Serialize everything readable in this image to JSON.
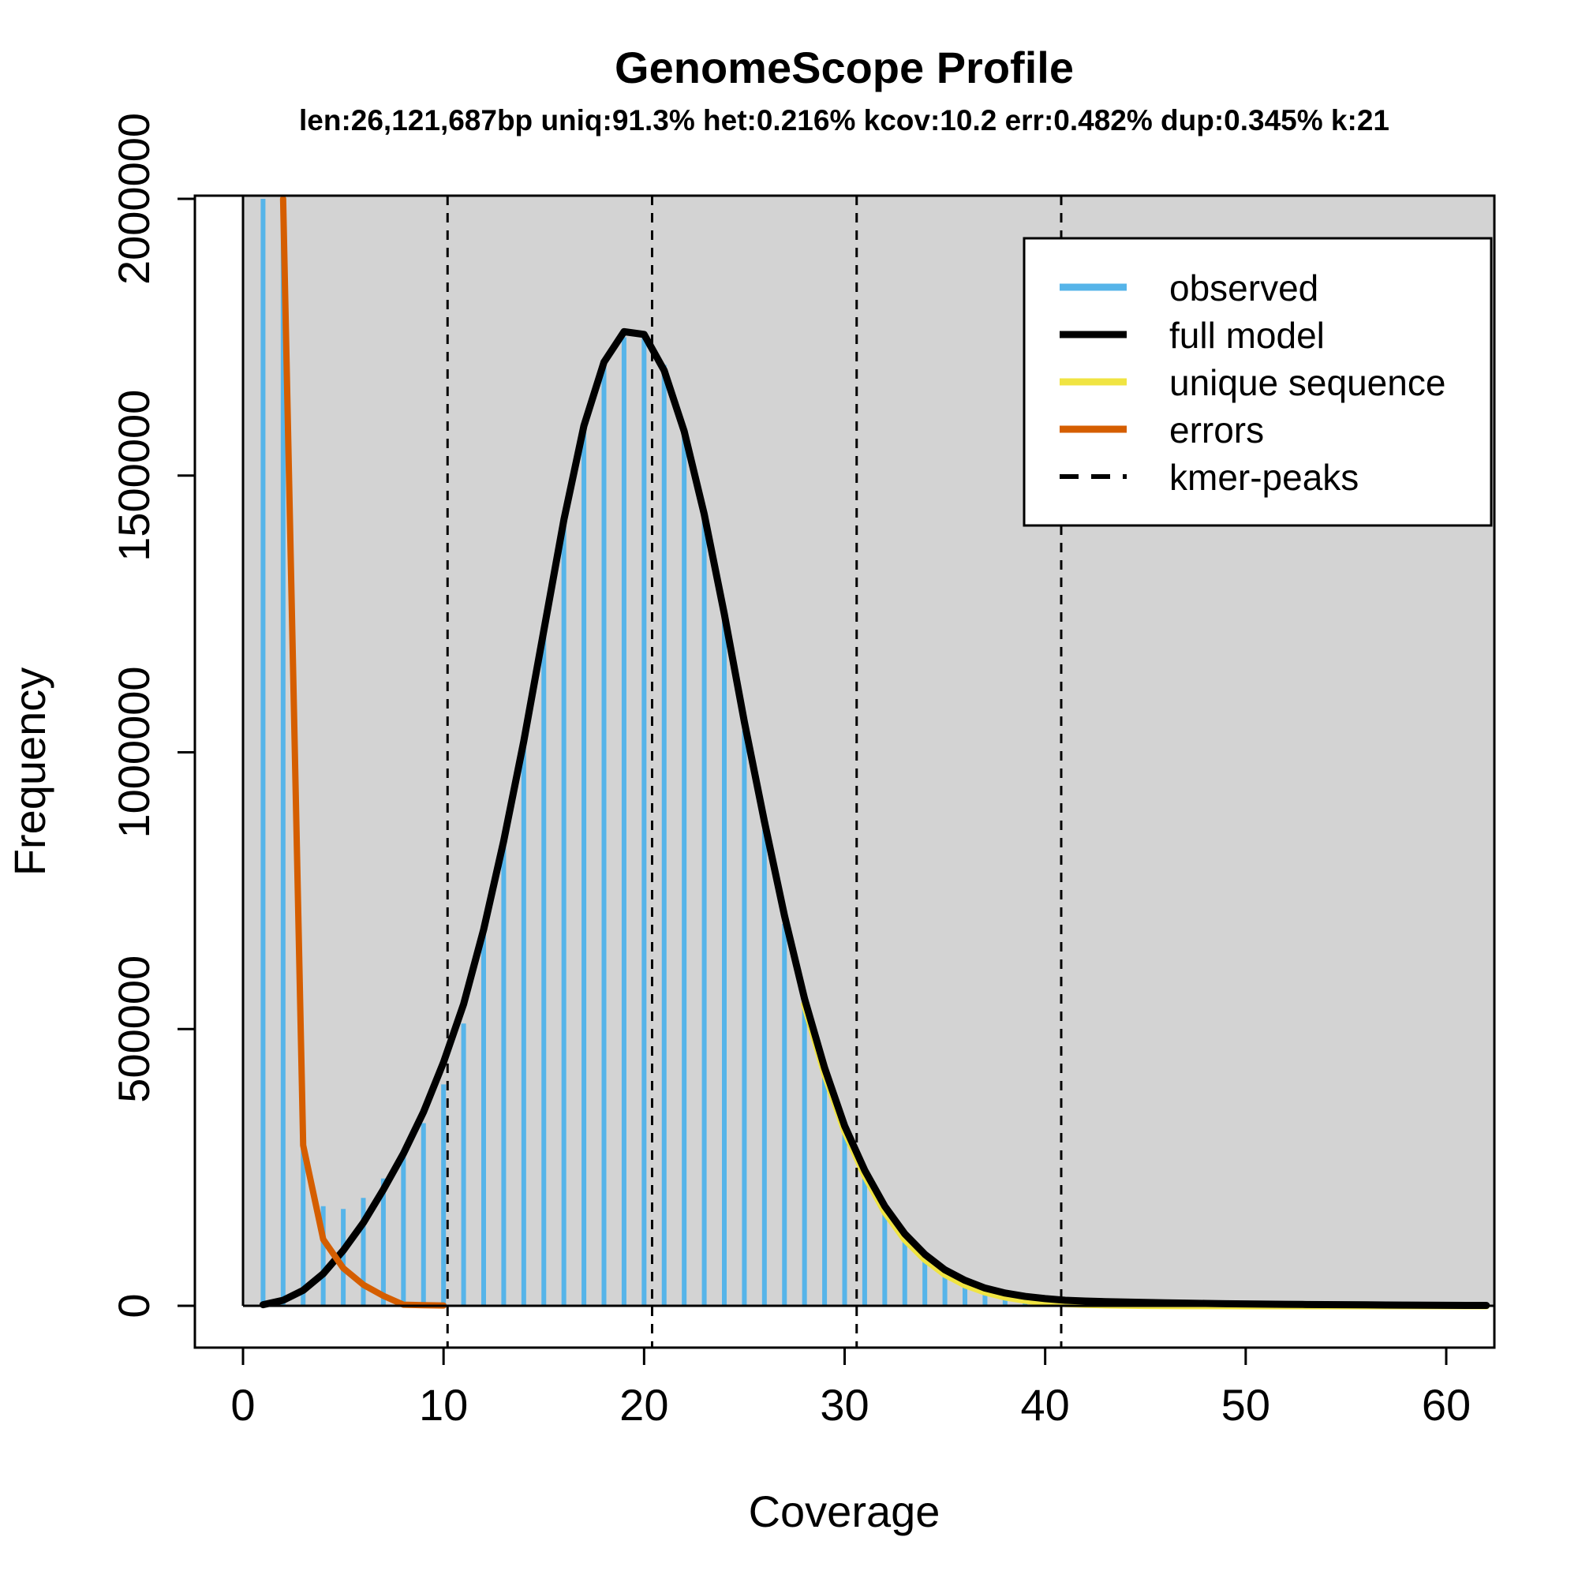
{
  "chart_data": {
    "type": "bar",
    "title": "GenomeScope Profile",
    "subtitle": "len:26,121,687bp uniq:91.3%  het:0.216% kcov:10.2 err:0.482%  dup:0.345%  k:21",
    "xlabel": "Coverage",
    "ylabel": "Frequency",
    "xlim": [
      -2.4,
      62.4
    ],
    "ylim": [
      -80000,
      2000000
    ],
    "x_ticks": [
      0,
      10,
      20,
      30,
      40,
      50,
      60
    ],
    "y_ticks": [
      0,
      500000,
      1000000,
      1500000,
      2000000
    ],
    "x_tick_labels": [
      "0",
      "10",
      "20",
      "30",
      "40",
      "50",
      "60"
    ],
    "y_tick_labels": [
      "0",
      "500000",
      "1000000",
      "1500000",
      "2000000"
    ],
    "background_x_start": 0,
    "kmer_peaks": [
      10.2,
      20.4,
      30.6,
      40.8
    ],
    "legend_position": "top-right",
    "legend": [
      {
        "label": "observed",
        "color": "#56b4e9",
        "style": "solid"
      },
      {
        "label": "full model",
        "color": "#000000",
        "style": "solid"
      },
      {
        "label": "unique sequence",
        "color": "#f0e442",
        "style": "solid"
      },
      {
        "label": "errors",
        "color": "#d55e00",
        "style": "solid"
      },
      {
        "label": "kmer-peaks",
        "color": "#000000",
        "style": "dashed"
      }
    ],
    "observed": {
      "name": "observed",
      "color": "#56b4e9",
      "x": [
        1,
        2,
        3,
        4,
        5,
        6,
        7,
        8,
        9,
        10,
        11,
        12,
        13,
        14,
        15,
        16,
        17,
        18,
        19,
        20,
        21,
        22,
        23,
        24,
        25,
        26,
        27,
        28,
        29,
        30,
        31,
        32,
        33,
        34,
        35,
        36,
        37,
        38,
        39,
        40,
        41,
        42,
        43,
        44,
        45,
        46,
        47,
        48,
        49,
        50,
        51,
        52,
        53,
        54,
        55,
        56,
        57,
        58,
        59,
        60,
        61,
        62
      ],
      "y": [
        2000000,
        2000000,
        300000,
        180000,
        175000,
        195000,
        230000,
        275000,
        330000,
        400000,
        510000,
        680000,
        840000,
        1020000,
        1220000,
        1420000,
        1590000,
        1700000,
        1750000,
        1760000,
        1700000,
        1580000,
        1430000,
        1240000,
        1040000,
        860000,
        690000,
        540000,
        420000,
        310000,
        230000,
        170000,
        125000,
        90000,
        65000,
        45000,
        32000,
        22000,
        16000,
        12000,
        9000,
        7000,
        6000,
        5000,
        4500,
        4000,
        3500,
        3000,
        2800,
        2500,
        2300,
        2100,
        1900,
        1800,
        1700,
        1600,
        1500,
        1400,
        1300,
        1200,
        1100,
        1000
      ]
    },
    "full_model": {
      "name": "full model",
      "color": "#000000",
      "x": [
        1,
        2,
        3,
        4,
        5,
        6,
        7,
        8,
        9,
        10,
        11,
        12,
        13,
        14,
        15,
        16,
        17,
        18,
        19,
        20,
        21,
        22,
        23,
        24,
        25,
        26,
        27,
        28,
        29,
        30,
        31,
        32,
        33,
        34,
        35,
        36,
        37,
        38,
        39,
        40,
        41,
        42,
        43,
        44,
        45,
        46,
        47,
        48,
        49,
        50,
        51,
        52,
        53,
        54,
        55,
        56,
        57,
        58,
        59,
        60,
        61,
        62
      ],
      "y": [
        2000,
        10000,
        28000,
        58000,
        100000,
        150000,
        210000,
        275000,
        350000,
        440000,
        545000,
        680000,
        840000,
        1020000,
        1220000,
        1420000,
        1590000,
        1705000,
        1760000,
        1755000,
        1690000,
        1580000,
        1430000,
        1250000,
        1055000,
        875000,
        705000,
        555000,
        430000,
        325000,
        245000,
        180000,
        130000,
        93000,
        65000,
        46000,
        32000,
        23000,
        17000,
        13000,
        10000,
        8500,
        7500,
        6700,
        6000,
        5400,
        4800,
        4300,
        3800,
        3400,
        3000,
        2700,
        2400,
        2100,
        1900,
        1700,
        1500,
        1300,
        1100,
        900,
        800,
        700
      ]
    },
    "unique_sequence": {
      "name": "unique sequence",
      "color": "#f0e442",
      "x": [
        28,
        29,
        30,
        31,
        32,
        33,
        34,
        35,
        36,
        37,
        38,
        39,
        40,
        41,
        42,
        43,
        44,
        45,
        46,
        47,
        48,
        49,
        50,
        51,
        52,
        53,
        54,
        55,
        56,
        57,
        58,
        59,
        60,
        61,
        62
      ],
      "y": [
        545000,
        420000,
        316000,
        236000,
        170000,
        120000,
        84000,
        57000,
        38000,
        25000,
        16000,
        10000,
        6500,
        4000,
        2500,
        1600,
        1000,
        600,
        400,
        250,
        150,
        100,
        60,
        40,
        25,
        15,
        10,
        6,
        4,
        2,
        1,
        1,
        0,
        0,
        0
      ]
    },
    "errors": {
      "name": "errors",
      "color": "#d55e00",
      "x": [
        2,
        3,
        4,
        5,
        6,
        7,
        8,
        9,
        10
      ],
      "y": [
        2000000,
        290000,
        120000,
        68000,
        38000,
        18000,
        2000,
        1000,
        500
      ]
    }
  }
}
